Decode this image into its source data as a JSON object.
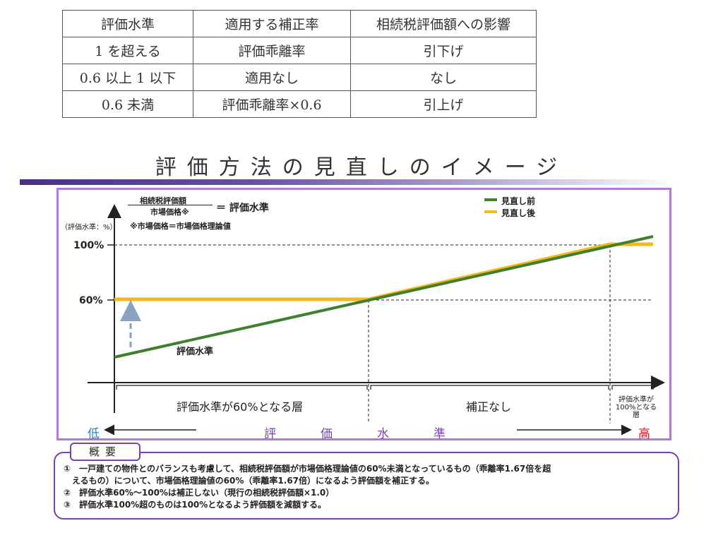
{
  "table": {
    "headers": [
      "評価水準",
      "適用する補正率",
      "相続税評価額への影響"
    ],
    "rows": [
      [
        "1 を超える",
        "評価乖離率",
        "引下げ"
      ],
      [
        "0.6 以上 1 以下",
        "適用なし",
        "なし"
      ],
      [
        "0.6 未満",
        "評価乖離率×0.6",
        "引上げ"
      ]
    ]
  },
  "section_title": "評価方法の見直しのイメージ",
  "chart": {
    "formula_numerator": "相続税評価額",
    "formula_denominator": "市場価格※",
    "formula_result": "＝ 評価水準",
    "formula_note": "※市場価格＝市場価格理論値",
    "y_axis_unit": "（評価水準：%）",
    "tick_100": "100%",
    "tick_60": "60%",
    "legend": [
      {
        "label": "見直し前",
        "color": "#3f7f2e"
      },
      {
        "label": "見直し後",
        "color": "#f2b81c"
      }
    ],
    "series_label": "評価水準",
    "regions": {
      "left": "評価水準が60%となる層",
      "middle": "補正なし",
      "right": "評価水準が100%となる層"
    },
    "axis_low": "低",
    "axis_high": "高",
    "axis_mid": [
      "評",
      "価",
      "水",
      "準"
    ],
    "colors": {
      "frame": "#b07bd6",
      "before": "#3f7f2e",
      "after": "#f2b81c",
      "arrow": "#8aa2c2"
    }
  },
  "overview": {
    "tab": "概要",
    "lines": [
      "①　一戸建ての物件とのバランスも考慮して、相続税評価額が市場価格理論値の60%未満となっているもの（乖離率1.67倍を超",
      "　えるもの）について、市場価格理論値の60%（乖離率1.67倍）になるよう評価額を補正する。",
      "②　評価水準60%～100%は補正しない（現行の相続税評価額×1.0）",
      "③　評価水準100%超のものは100%となるよう評価額を減額する。"
    ]
  }
}
